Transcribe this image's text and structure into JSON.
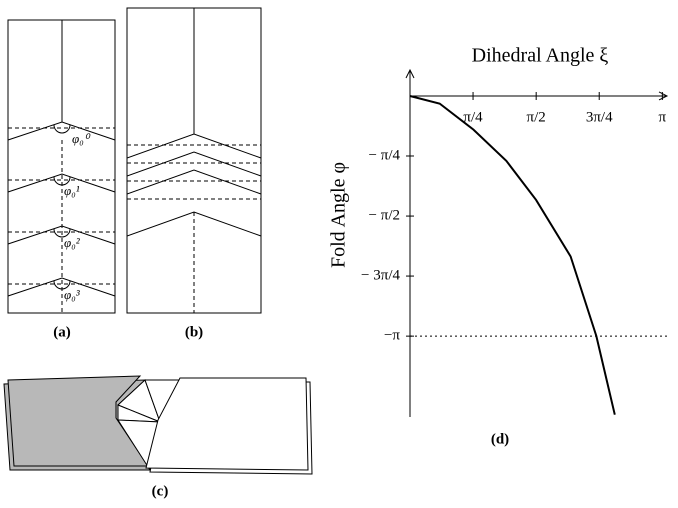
{
  "panel_a": {
    "angle_labels": [
      "φ₀⁰",
      "φ₀¹",
      "φ₀²",
      "φ₀³"
    ],
    "caption": "(a)"
  },
  "panel_b": {
    "caption": "(b)"
  },
  "panel_c": {
    "caption": "(c)"
  },
  "chart_data": {
    "type": "line",
    "caption": "(d)",
    "xlabel": "Dihedral Angle ξ",
    "ylabel": "Fold Angle φ",
    "x": [
      0,
      0.37,
      0.79,
      1.2,
      1.57,
      2.0,
      2.32,
      2.55
    ],
    "values": [
      0,
      -0.1,
      -0.44,
      -0.85,
      -1.36,
      -2.1,
      -3.14,
      -4.17
    ],
    "color": "#000000",
    "xlim": [
      0,
      3.2
    ],
    "ylim": [
      -4.2,
      0.34
    ],
    "xticks": [
      {
        "value": 0.785,
        "label": "π/4"
      },
      {
        "value": 1.571,
        "label": "π/2"
      },
      {
        "value": 2.356,
        "label": "3π/4"
      },
      {
        "value": 3.142,
        "label": "π"
      }
    ],
    "yticks": [
      {
        "value": -0.785,
        "label": "− π/4"
      },
      {
        "value": -1.571,
        "label": "− π/2"
      },
      {
        "value": -2.356,
        "label": "− 3π/4"
      },
      {
        "value": -3.142,
        "label": "−π"
      }
    ],
    "hline": -3.142
  }
}
